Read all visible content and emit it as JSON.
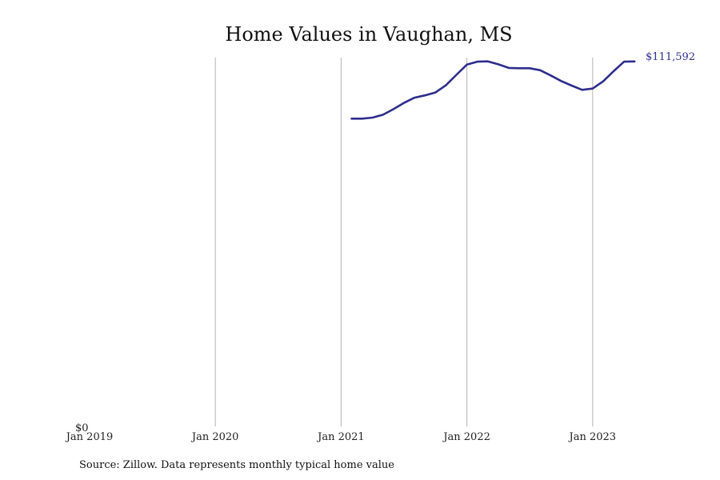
{
  "chart_data": {
    "type": "line",
    "title": "Home Values in Vaughan, MS",
    "xlabel": "",
    "ylabel": "",
    "x_ticks": [
      "Jan 2019",
      "Jan 2020",
      "Jan 2021",
      "Jan 2022",
      "Jan 2023"
    ],
    "y_ticks": [
      "$0"
    ],
    "ylim": [
      0,
      113000
    ],
    "xlim": [
      "2019-01",
      "2023-12"
    ],
    "grid": {
      "vertical": true,
      "horizontal": false
    },
    "legend": "none",
    "color": "#2e2d8c",
    "end_label": "$111,592",
    "series": [
      {
        "x": [
          "2021-02",
          "2021-03",
          "2021-04",
          "2021-05",
          "2021-06",
          "2021-07",
          "2021-08",
          "2021-09",
          "2021-10",
          "2021-11",
          "2021-12",
          "2022-01",
          "2022-02",
          "2022-03",
          "2022-04",
          "2022-05",
          "2022-06",
          "2022-07",
          "2022-08",
          "2022-09",
          "2022-10",
          "2022-11",
          "2022-12",
          "2023-01",
          "2023-02",
          "2023-03",
          "2023-04",
          "2023-05"
        ],
        "values": [
          94100,
          94100,
          94400,
          95300,
          97000,
          98900,
          100500,
          101200,
          102100,
          104300,
          107500,
          110600,
          111500,
          111600,
          110700,
          109600,
          109500,
          109500,
          108900,
          107300,
          105600,
          104200,
          102900,
          103300,
          105500,
          108600,
          111500,
          111592
        ]
      }
    ]
  },
  "source_note": "Source: Zillow. Data represents monthly typical home value"
}
